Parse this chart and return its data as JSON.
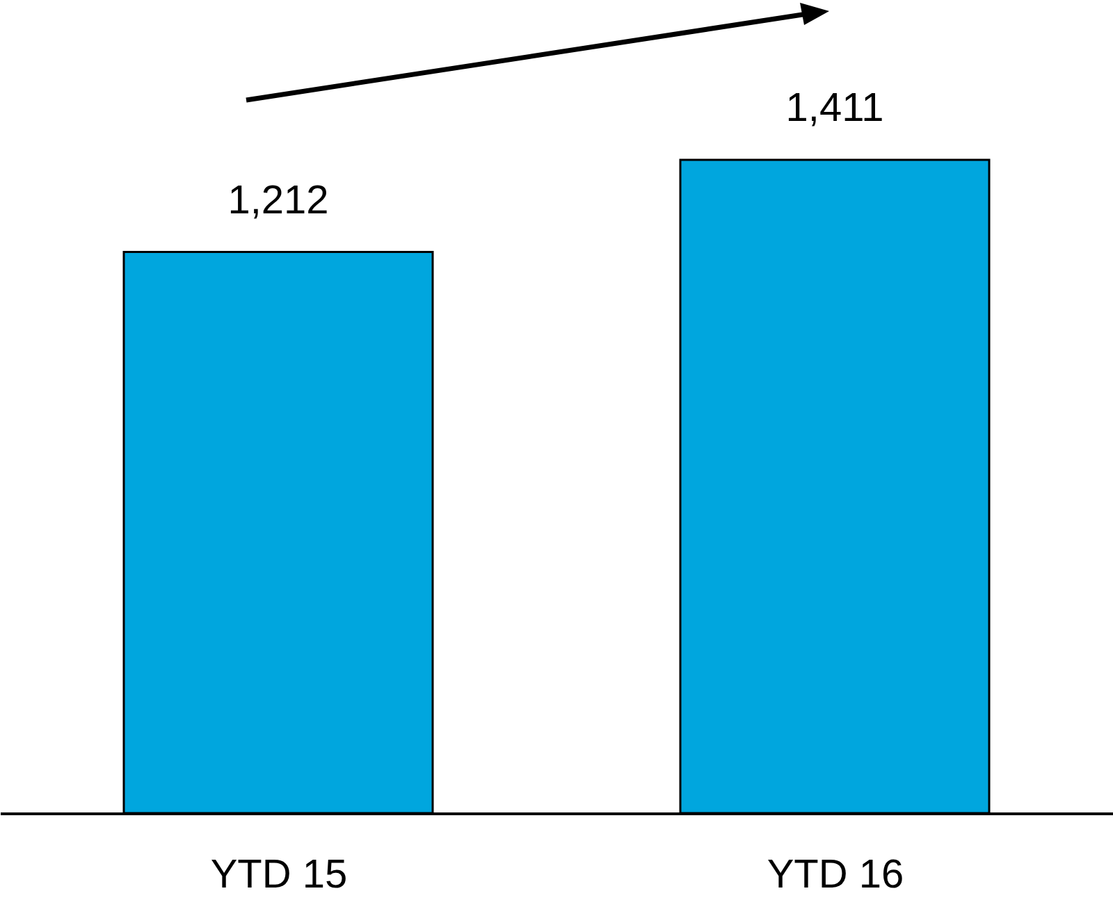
{
  "chart_data": {
    "type": "bar",
    "categories": [
      "YTD 15",
      "YTD 16"
    ],
    "values": [
      1212,
      1411
    ],
    "color": "#00a6de",
    "value_labels": [
      "1,212",
      "1,411"
    ]
  }
}
